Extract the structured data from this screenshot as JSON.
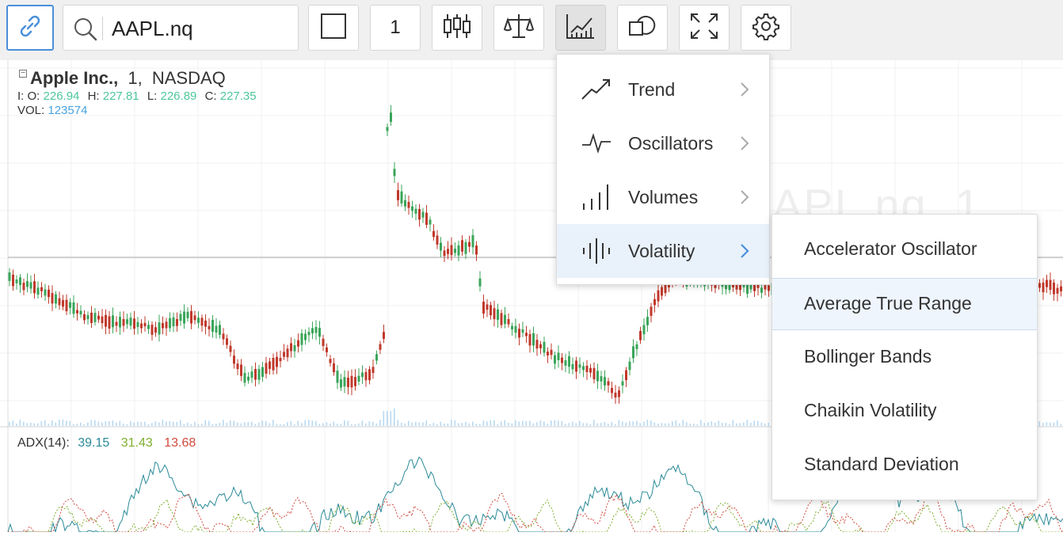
{
  "toolbar": {
    "symbol_value": "AAPL.nq",
    "interval_label": "1",
    "icons": [
      "link-icon",
      "search-icon",
      "square-icon",
      "candles-icon",
      "compare-icon",
      "indicators-icon",
      "shapes-icon",
      "fullscreen-icon",
      "settings-icon"
    ]
  },
  "legend": {
    "name": "Apple Inc.,",
    "interval": "1,",
    "exchange": "NASDAQ",
    "open_label": "I: O:",
    "open": "226.94",
    "high_label": "H:",
    "high": "227.81",
    "low_label": "L:",
    "low": "226.89",
    "close_label": "C:",
    "close": "227.35",
    "vol_label": "VOL:",
    "vol": "123574",
    "collapse": "−"
  },
  "adx": {
    "label": "ADX(14):",
    "v1": "39.15",
    "v2": "31.43",
    "v3": "13.68"
  },
  "watermark": "APL.nq, 1",
  "menu": {
    "items": [
      {
        "label": "Trend",
        "icon": "trend-icon"
      },
      {
        "label": "Oscillators",
        "icon": "oscillator-icon"
      },
      {
        "label": "Volumes",
        "icon": "volumes-icon"
      },
      {
        "label": "Volatility",
        "icon": "volatility-icon"
      }
    ],
    "selected": "Volatility"
  },
  "submenu": {
    "items": [
      {
        "label": "Accelerator Oscillator"
      },
      {
        "label": "Average True Range"
      },
      {
        "label": "Bollinger Bands"
      },
      {
        "label": "Chaikin Volatility"
      },
      {
        "label": "Standard Deviation"
      }
    ],
    "highlighted": "Average True Range"
  },
  "colors": {
    "accent": "#4a8fd9",
    "up": "#4ec79a",
    "volume": "#4aa3df",
    "candle_up": "#3aa55a",
    "candle_down": "#c0392b",
    "adx_line": "#2a8a98",
    "plus_di": "#7fae2e",
    "minus_di": "#d04a3e"
  }
}
